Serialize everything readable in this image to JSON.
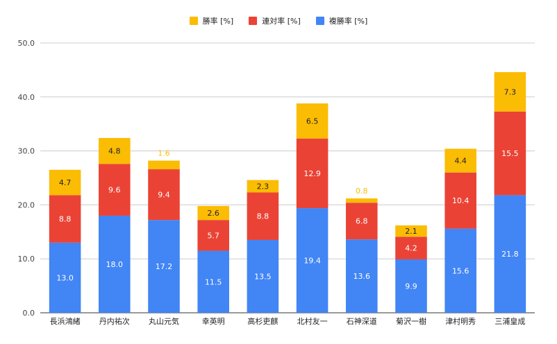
{
  "chart_data": {
    "type": "bar",
    "stacked": true,
    "categories": [
      "長浜鴻緒",
      "丹内祐次",
      "丸山元気",
      "幸英明",
      "高杉吏麒",
      "北村友一",
      "石神深道",
      "菊沢一樹",
      "津村明秀",
      "三浦皇成"
    ],
    "series": [
      {
        "name": "複勝率 [%]",
        "color": "#4285f4",
        "values": [
          13.0,
          18.0,
          17.2,
          11.5,
          13.5,
          19.4,
          13.6,
          9.9,
          15.6,
          21.8
        ]
      },
      {
        "name": "連対率 [%]",
        "color": "#ea4335",
        "values": [
          8.8,
          9.6,
          9.4,
          5.7,
          8.8,
          12.9,
          6.8,
          4.2,
          10.4,
          15.5
        ]
      },
      {
        "name": "勝率 [%]",
        "color": "#fbbc04",
        "values": [
          4.7,
          4.8,
          1.6,
          2.6,
          2.3,
          6.5,
          0.8,
          2.1,
          4.4,
          7.3
        ]
      }
    ],
    "legend_order": [
      2,
      1,
      0
    ],
    "legend_position": "top",
    "ylim": [
      0,
      50
    ],
    "yticks": [
      "0.0",
      "10.0",
      "20.0",
      "30.0",
      "40.0",
      "50.0"
    ],
    "grid": true,
    "title": "",
    "xlabel": "",
    "ylabel": ""
  }
}
